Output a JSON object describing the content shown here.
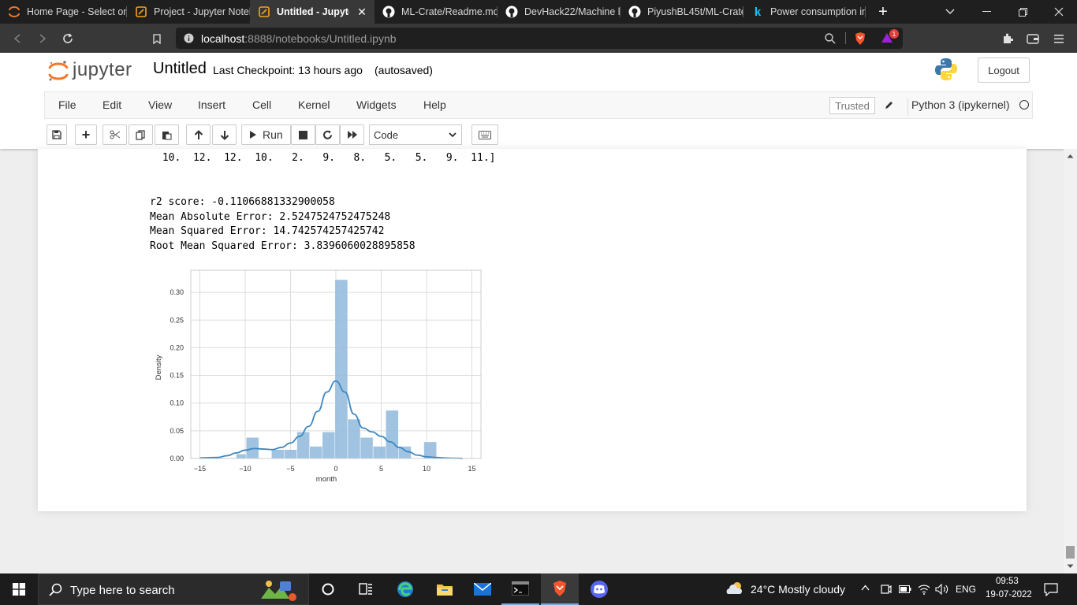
{
  "browser": {
    "tabs": [
      {
        "label": "Home Page - Select or",
        "icon": "jupyter-icon"
      },
      {
        "label": "Project - Jupyter Noteb",
        "icon": "notebook-icon"
      },
      {
        "label": "Untitled - Jupyter",
        "icon": "notebook-icon",
        "active": true
      },
      {
        "label": "ML-Crate/Readme.md",
        "icon": "github-icon"
      },
      {
        "label": "DevHack22/Machine le",
        "icon": "github-icon"
      },
      {
        "label": "PiyushBL45t/ML-Crate",
        "icon": "github-icon"
      },
      {
        "label": "Power consumption in",
        "icon": "kaggle-icon"
      }
    ],
    "url_host": "localhost",
    "url_rest": ":8888/notebooks/Untitled.ipynb",
    "brave_badge": "1"
  },
  "jupyter": {
    "logo_text": "jupyter",
    "notebook_name": "Untitled",
    "checkpoint": "Last Checkpoint: 13 hours ago",
    "autosaved": "(autosaved)",
    "logout": "Logout",
    "menu": [
      "File",
      "Edit",
      "View",
      "Insert",
      "Cell",
      "Kernel",
      "Widgets",
      "Help"
    ],
    "trusted": "Trusted",
    "kernel": "Python 3 (ipykernel)",
    "toolbar": {
      "run_label": "Run",
      "cell_type": "Code"
    }
  },
  "output": {
    "array_tail": " 10.  12.  12.  10.   2.   9.   8.   5.   5.   9.  11.]",
    "metrics": [
      "r2 score: -0.11066881332900058",
      "Mean Absolute Error: 2.5247524752475248",
      "Mean Squared Error: 14.742574257425742",
      "Root Mean Squared Error: 3.8396060028895858"
    ]
  },
  "chart_data": {
    "type": "bar",
    "xlabel": "month",
    "ylabel": "Density",
    "xlim": [
      -16,
      16
    ],
    "ylim": [
      0,
      0.34
    ],
    "xticks": [
      -15,
      -10,
      -5,
      0,
      5,
      10,
      15
    ],
    "yticks": [
      0.0,
      0.05,
      0.1,
      0.15,
      0.2,
      0.25,
      0.3
    ],
    "ytick_labels": [
      "0.00",
      "0.05",
      "0.10",
      "0.15",
      "0.20",
      "0.25",
      "0.30"
    ],
    "grid": true,
    "bar_color": "#8fb8dc",
    "line_color": "#3d87c0",
    "bins": [
      {
        "x0": -11.0,
        "x1": -9.9,
        "value": 0.008
      },
      {
        "x0": -9.9,
        "x1": -8.5,
        "value": 0.038
      },
      {
        "x0": -7.1,
        "x1": -5.7,
        "value": 0.016
      },
      {
        "x0": -5.7,
        "x1": -4.3,
        "value": 0.016
      },
      {
        "x0": -4.3,
        "x1": -2.9,
        "value": 0.048
      },
      {
        "x0": -2.9,
        "x1": -1.5,
        "value": 0.022
      },
      {
        "x0": -1.5,
        "x1": -0.1,
        "value": 0.048
      },
      {
        "x0": -0.1,
        "x1": 1.3,
        "value": 0.323
      },
      {
        "x0": 1.3,
        "x1": 2.7,
        "value": 0.071
      },
      {
        "x0": 2.7,
        "x1": 4.1,
        "value": 0.038
      },
      {
        "x0": 4.1,
        "x1": 5.5,
        "value": 0.022
      },
      {
        "x0": 5.5,
        "x1": 6.9,
        "value": 0.087
      },
      {
        "x0": 6.9,
        "x1": 8.3,
        "value": 0.022
      },
      {
        "x0": 9.7,
        "x1": 11.1,
        "value": 0.03
      }
    ],
    "kde": {
      "x": [
        -15,
        -13,
        -12,
        -11,
        -10,
        -9,
        -8,
        -7,
        -6,
        -5,
        -4,
        -3,
        -2,
        -1,
        0,
        1,
        2,
        3,
        4,
        5,
        6,
        7,
        8,
        9,
        10,
        11,
        12,
        13,
        14
      ],
      "y": [
        0.001,
        0.002,
        0.005,
        0.01,
        0.015,
        0.018,
        0.017,
        0.016,
        0.02,
        0.028,
        0.04,
        0.058,
        0.085,
        0.12,
        0.14,
        0.12,
        0.08,
        0.055,
        0.048,
        0.04,
        0.03,
        0.02,
        0.012,
        0.006,
        0.003,
        0.002,
        0.001,
        0.0005,
        0.0002
      ]
    }
  },
  "taskbar": {
    "search_placeholder": "Type here to search",
    "weather": "24°C  Mostly cloudy",
    "lang": "ENG",
    "time": "09:53",
    "date": "19-07-2022"
  }
}
